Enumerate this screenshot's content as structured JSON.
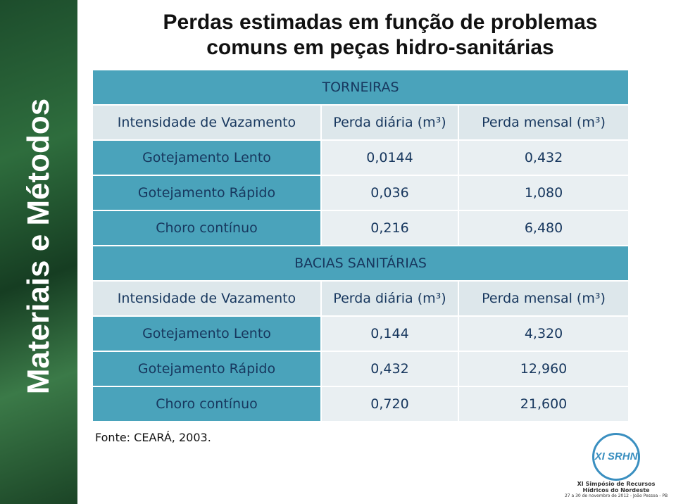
{
  "side_title": "Materiais e Métodos",
  "title": [
    "Perdas estimadas em função de problemas",
    "comuns em peças hidro-sanitárias"
  ],
  "sections": [
    {
      "title": "TORNEIRAS",
      "header": [
        "Intensidade de Vazamento",
        "Perda diária (m³)",
        "Perda mensal (m³)"
      ],
      "rows": [
        [
          "Gotejamento Lento",
          "0,0144",
          "0,432"
        ],
        [
          "Gotejamento Rápido",
          "0,036",
          "1,080"
        ],
        [
          "Choro contínuo",
          "0,216",
          "6,480"
        ]
      ]
    },
    {
      "title": "BACIAS SANITÁRIAS",
      "header": [
        "Intensidade de Vazamento",
        "Perda diária (m³)",
        "Perda mensal (m³)"
      ],
      "rows": [
        [
          "Gotejamento Lento",
          "0,144",
          "4,320"
        ],
        [
          "Gotejamento Rápido",
          "0,432",
          "12,960"
        ],
        [
          "Choro contínuo",
          "0,720",
          "21,600"
        ]
      ]
    }
  ],
  "source": "Fonte: CEARÁ, 2003.",
  "logo": {
    "mark": "XI SRHN",
    "name": "XI Simpósio de Recursos Hídricos do Nordeste",
    "dates": "27 a 30 de novembro de 2012 - João Pessoa - PB"
  }
}
